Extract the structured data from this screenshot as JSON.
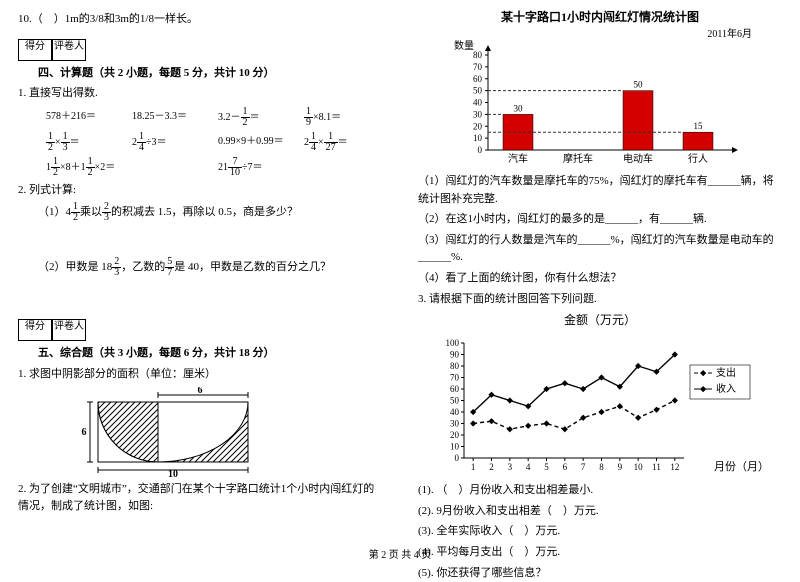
{
  "left": {
    "q10": "10.（　）1m的3/8和3m的1/8一样长。",
    "scorebox": {
      "a": "得分",
      "b": "评卷人"
    },
    "sec4_title": "四、计算题（共 2 小题，每题 5 分，共计 10 分）",
    "calc_intro": "1. 直接写出得数.",
    "calc_cells": [
      "578＋216＝",
      "18.25－3.3＝",
      "3.2－",
      "×8.1＝",
      "×",
      "2",
      "0.99×9＋0.99＝",
      "2",
      "1",
      "",
      "21",
      ""
    ],
    "calc_row2_intro": "2. 列式计算:",
    "calc2_a": "（1）4",
    "calc2_a_tail": "乘以",
    "calc2_a_tail2": "的积减去 1.5，再除以 0.5，商是多少？",
    "calc2_b": "（2）甲数是 18",
    "calc2_b_mid": "，乙数的",
    "calc2_b_tail": "是 40，甲数是乙数的百分之几？",
    "sec5_title": "五、综合题（共 3 小题，每题 6 分，共计 18 分）",
    "comp1": "1. 求图中阴影部分的面积（单位：厘米）",
    "geom": {
      "w": 10,
      "h": 6,
      "top_w": 6
    },
    "comp2": "2. 为了创建“文明城市”，交通部门在某个十字路口统计1个小时内闯红灯的情况，制成了统计图，如图:"
  },
  "right": {
    "bar_title": "某十字路口1小时内闯红灯情况统计图",
    "bar_date": "2011年6月",
    "bar_ylab": "数量",
    "bar": {
      "categories": [
        "汽车",
        "摩托车",
        "电动车",
        "行人"
      ],
      "values": [
        30,
        null,
        50,
        15
      ],
      "labels": [
        "30",
        "",
        "50",
        "15"
      ],
      "colors": [
        "#d40000",
        "#d40000",
        "#d40000",
        "#d40000"
      ],
      "ylim": [
        0,
        80
      ],
      "ytick_step": 10,
      "axis_color": "#000000",
      "bg": "#ffffff",
      "dash_color": "#333333"
    },
    "q1": "（1）闯红灯的汽车数量是摩托车的75%，闯红灯的摩托车有______辆，将统计图补充完整.",
    "q2": "（2）在这1小时内，闯红灯的最多的是______，有______辆.",
    "q3": "（3）闯红灯的行人数量是汽车的______%，闯红灯的汽车数量是电动车的______%.",
    "q4": "（4）看了上面的统计图，你有什么想法？",
    "p3_intro": "3. 请根据下面的统计图回答下列问题.",
    "line_title": "金额（万元）",
    "line": {
      "xlabel": "月份（月）",
      "x": [
        1,
        2,
        3,
        4,
        5,
        6,
        7,
        8,
        9,
        10,
        11,
        12
      ],
      "ylim": [
        0,
        100
      ],
      "ytick_step": 10,
      "series": [
        {
          "name": "支出",
          "style": "dash",
          "marker": "diamond",
          "color": "#000000",
          "y": [
            30,
            32,
            25,
            28,
            30,
            25,
            35,
            40,
            45,
            35,
            42,
            50
          ]
        },
        {
          "name": "收入",
          "style": "solid",
          "marker": "diamond",
          "color": "#000000",
          "y": [
            40,
            55,
            50,
            45,
            60,
            65,
            60,
            70,
            62,
            80,
            75,
            90
          ]
        }
      ],
      "axis_color": "#000000",
      "bg": "#ffffff"
    },
    "lq": [
      "(1). （　）月份收入和支出相差最小.",
      "(2). 9月份收入和支出相差（　）万元.",
      "(3). 全年实际收入（　）万元.",
      "(4). 平均每月支出（　）万元.",
      "(5). 你还获得了哪些信息？"
    ]
  },
  "footer": "第 2 页 共 4 页"
}
